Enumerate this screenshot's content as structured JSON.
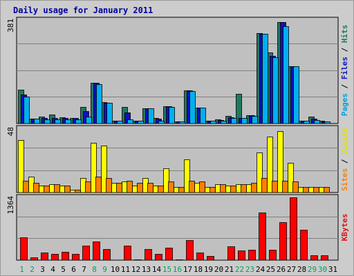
{
  "chart_data": {
    "type": "bar",
    "title": "Daily usage for January 2011",
    "categories": [
      "1",
      "2",
      "3",
      "4",
      "5",
      "6",
      "7",
      "8",
      "9",
      "10",
      "11",
      "12",
      "13",
      "14",
      "15",
      "16",
      "17",
      "18",
      "19",
      "20",
      "21",
      "22",
      "23",
      "24",
      "25",
      "26",
      "27",
      "28",
      "29",
      "30",
      "31"
    ],
    "weekend_days": [
      "1",
      "2",
      "8",
      "9",
      "15",
      "16",
      "22",
      "23",
      "29",
      "30"
    ],
    "panels": [
      {
        "id": "hits",
        "ymax": 381,
        "labels": [
          {
            "text": "Pages",
            "color": "#00a0e0"
          },
          {
            "text": " / ",
            "color": "#000000"
          },
          {
            "text": "Files",
            "color": "#1010c0"
          },
          {
            "text": " / ",
            "color": "#000000"
          },
          {
            "text": "Hits",
            "color": "#207860"
          }
        ],
        "series": [
          {
            "name": "Hits",
            "color": "#207860",
            "values": [
              124,
              17,
              26,
              32,
              23,
              20,
              60,
              150,
              80,
              10,
              60,
              10,
              56,
              20,
              63,
              8,
              122,
              59,
              10,
              16,
              28,
              110,
              30,
              334,
              261,
              373,
              210,
              10,
              25,
              10,
              0
            ]
          },
          {
            "name": "Files",
            "color": "#1010c0",
            "values": [
              107,
              17,
              21,
              21,
              21,
              20,
              45,
              150,
              77,
              10,
              40,
              10,
              56,
              17,
              63,
              8,
              122,
              58,
              10,
              12,
              22,
              20,
              30,
              330,
              250,
              373,
              210,
              10,
              18,
              8,
              0
            ]
          },
          {
            "name": "Pages",
            "color": "#00b0f0",
            "values": [
              98,
              17,
              14,
              15,
              14,
              14,
              25,
              145,
              77,
              10,
              15,
              10,
              55,
              11,
              60,
              8,
              120,
              58,
              10,
              11,
              21,
              20,
              29,
              331,
              245,
              358,
              211,
              10,
              13,
              8,
              0
            ]
          }
        ]
      },
      {
        "id": "visits",
        "ymax": 48,
        "labels": [
          {
            "text": "Sites",
            "color": "#ff8000"
          },
          {
            "text": " / ",
            "color": "#000000"
          },
          {
            "text": "Visits",
            "color": "#e0e000"
          }
        ],
        "series": [
          {
            "name": "Visits",
            "color": "#ffff00",
            "values": [
              39,
              12,
              5,
              6,
              5,
              2,
              11,
              37,
              35,
              7,
              8,
              5,
              11,
              5,
              18,
              4,
              25,
              7,
              4,
              6,
              5,
              6,
              6,
              30,
              42,
              46,
              22,
              4,
              4,
              4,
              0
            ]
          },
          {
            "name": "Sites",
            "color": "#ff8000",
            "values": [
              9,
              7,
              5,
              6,
              5,
              2,
              8,
              12,
              11,
              7,
              9,
              7,
              7,
              5,
              8,
              4,
              9,
              8,
              4,
              6,
              5,
              6,
              7,
              11,
              9,
              9,
              8,
              4,
              4,
              4,
              0
            ]
          }
        ]
      },
      {
        "id": "kbytes",
        "ymax": 1364,
        "labels": [
          {
            "text": "KBytes",
            "color": "#e01010"
          }
        ],
        "series": [
          {
            "name": "KBytes",
            "color": "#ff0000",
            "values": [
              500,
              60,
              160,
              130,
              180,
              130,
              310,
              400,
              240,
              0,
              310,
              20,
              240,
              130,
              270,
              20,
              440,
              170,
              90,
              0,
              300,
              210,
              220,
              1030,
              220,
              830,
              1364,
              660,
              110,
              110,
              0
            ]
          }
        ]
      }
    ]
  }
}
